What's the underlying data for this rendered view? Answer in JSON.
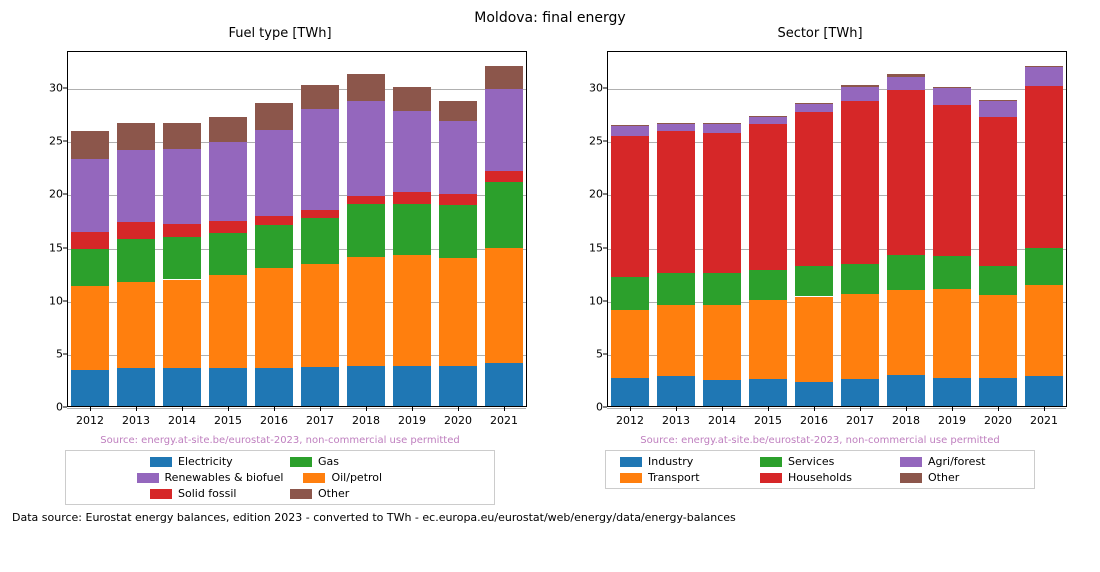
{
  "suptitle": "Moldova: final energy",
  "footer": "Data source: Eurostat energy balances, edition 2023 - converted to TWh - ec.europa.eu/eurostat/web/energy/data/energy-balances",
  "credit": {
    "text": "Source: energy.at-site.be/eurostat-2023, non-commercial use permitted",
    "color": "#bf7fbf"
  },
  "axes": {
    "ylim": [
      0,
      33.5
    ],
    "yticks": [
      0,
      5,
      10,
      15,
      20,
      25,
      30
    ],
    "grid_color": "#b0b0b0",
    "tick_fontsize": 11,
    "categories": [
      "2012",
      "2013",
      "2014",
      "2015",
      "2016",
      "2017",
      "2018",
      "2019",
      "2020",
      "2021"
    ],
    "bar_width_ratio": 0.82
  },
  "panels": [
    {
      "title": "Fuel type [TWh]",
      "series": [
        {
          "name": "electricity",
          "label": "Electricity",
          "color": "#1f77b4"
        },
        {
          "name": "oil-petrol",
          "label": "Oil/petrol",
          "color": "#ff7f0e"
        },
        {
          "name": "gas",
          "label": "Gas",
          "color": "#2ca02c"
        },
        {
          "name": "solid-fossil",
          "label": "Solid fossil",
          "color": "#d62728"
        },
        {
          "name": "renewables-biofuel",
          "label": "Renewables & biofuel",
          "color": "#9467bd"
        },
        {
          "name": "other",
          "label": "Other",
          "color": "#8c564b"
        }
      ],
      "legend_order": [
        0,
        2,
        4,
        1,
        3,
        5
      ],
      "data": [
        [
          3.5,
          7.9,
          3.5,
          1.6,
          6.8,
          2.7
        ],
        [
          3.7,
          8.1,
          4.0,
          1.6,
          6.8,
          2.5
        ],
        [
          3.7,
          8.3,
          4.0,
          1.2,
          7.1,
          2.4
        ],
        [
          3.7,
          8.7,
          4.0,
          1.1,
          7.4,
          2.4
        ],
        [
          3.7,
          9.4,
          4.0,
          0.9,
          8.1,
          2.5
        ],
        [
          3.8,
          9.7,
          4.3,
          0.7,
          9.5,
          2.3
        ],
        [
          3.9,
          10.2,
          5.0,
          0.8,
          8.9,
          2.5
        ],
        [
          3.9,
          10.4,
          4.8,
          1.1,
          7.7,
          2.2
        ],
        [
          3.9,
          10.1,
          5.0,
          1.0,
          6.9,
          1.9
        ],
        [
          4.1,
          10.9,
          6.2,
          1.0,
          7.7,
          2.2
        ]
      ]
    },
    {
      "title": "Sector [TWh]",
      "series": [
        {
          "name": "industry",
          "label": "Industry",
          "color": "#1f77b4"
        },
        {
          "name": "transport",
          "label": "Transport",
          "color": "#ff7f0e"
        },
        {
          "name": "services",
          "label": "Services",
          "color": "#2ca02c"
        },
        {
          "name": "households",
          "label": "Households",
          "color": "#d62728"
        },
        {
          "name": "agri-forest",
          "label": "Agri/forest",
          "color": "#9467bd"
        },
        {
          "name": "other",
          "label": "Other",
          "color": "#8c564b"
        }
      ],
      "legend_order": [
        0,
        2,
        4,
        1,
        3,
        5
      ],
      "data": [
        [
          2.7,
          6.4,
          3.1,
          13.3,
          0.9,
          0.1
        ],
        [
          2.9,
          6.7,
          3.0,
          13.4,
          0.6,
          0.1
        ],
        [
          2.5,
          7.1,
          3.0,
          13.2,
          0.8,
          0.1
        ],
        [
          2.6,
          7.5,
          2.8,
          13.7,
          0.7,
          0.1
        ],
        [
          2.4,
          8.0,
          2.9,
          14.5,
          0.7,
          0.1
        ],
        [
          2.6,
          8.0,
          2.9,
          15.3,
          1.3,
          0.2
        ],
        [
          3.0,
          8.0,
          3.3,
          15.5,
          1.3,
          0.2
        ],
        [
          2.7,
          8.4,
          3.1,
          14.2,
          1.6,
          0.1
        ],
        [
          2.7,
          7.8,
          2.8,
          14.0,
          1.5,
          0.1
        ],
        [
          2.9,
          8.6,
          3.5,
          15.2,
          1.8,
          0.1
        ]
      ]
    }
  ]
}
